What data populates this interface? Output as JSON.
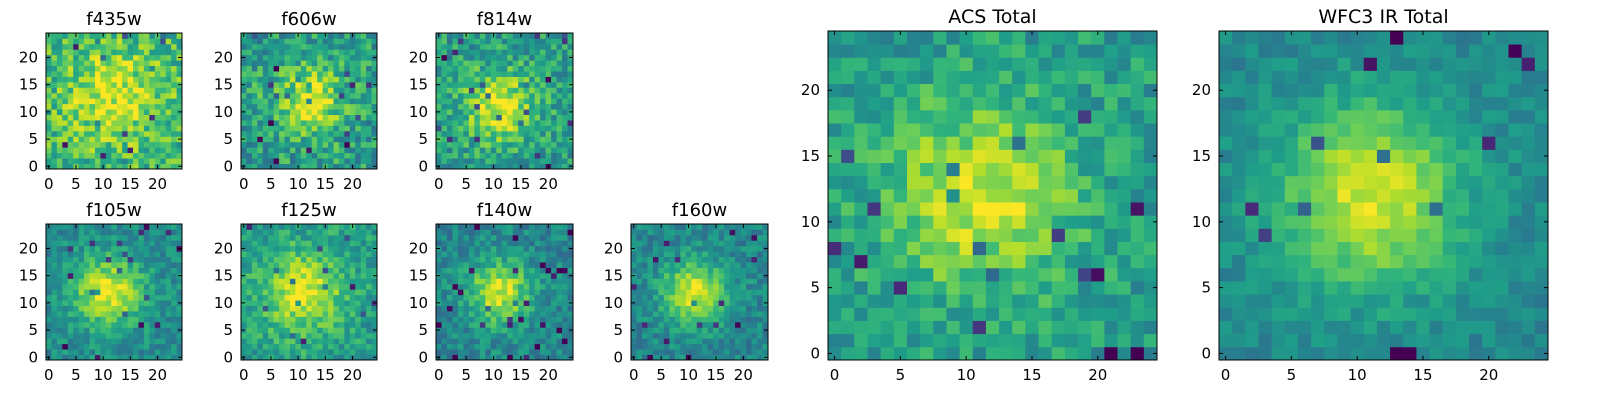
{
  "chart_data": [
    {
      "type": "heatmap",
      "title": "f435w",
      "grid_size": 25,
      "xlim": [
        -0.5,
        24.5
      ],
      "ylim": [
        -0.5,
        24.5
      ],
      "xticks": [
        0,
        5,
        10,
        15,
        20
      ],
      "yticks": [
        0,
        5,
        10,
        15,
        20
      ],
      "colormap": "viridis",
      "center": [
        12,
        13
      ],
      "sigma": 6,
      "peak": 0.28,
      "base": 0.66,
      "noise": 0.2,
      "seed": 11,
      "grid": false,
      "legend": false
    },
    {
      "type": "heatmap",
      "title": "f606w",
      "grid_size": 25,
      "xlim": [
        -0.5,
        24.5
      ],
      "ylim": [
        -0.5,
        24.5
      ],
      "xticks": [
        0,
        5,
        10,
        15,
        20
      ],
      "yticks": [
        0,
        5,
        10,
        15,
        20
      ],
      "colormap": "viridis",
      "center": [
        12,
        12
      ],
      "sigma": 4.5,
      "peak": 0.4,
      "base": 0.55,
      "noise": 0.2,
      "seed": 23,
      "grid": false,
      "legend": false
    },
    {
      "type": "heatmap",
      "title": "f814w",
      "grid_size": 25,
      "xlim": [
        -0.5,
        24.5
      ],
      "ylim": [
        -0.5,
        24.5
      ],
      "xticks": [
        0,
        5,
        10,
        15,
        20
      ],
      "yticks": [
        0,
        5,
        10,
        15,
        20
      ],
      "colormap": "viridis",
      "center": [
        11,
        11
      ],
      "sigma": 4.5,
      "peak": 0.42,
      "base": 0.55,
      "noise": 0.18,
      "seed": 37,
      "grid": false,
      "legend": false
    },
    {
      "type": "heatmap",
      "title": "f105w",
      "grid_size": 25,
      "xlim": [
        -0.5,
        24.5
      ],
      "ylim": [
        -0.5,
        24.5
      ],
      "xticks": [
        0,
        5,
        10,
        15,
        20
      ],
      "yticks": [
        0,
        5,
        10,
        15,
        20
      ],
      "colormap": "viridis",
      "center": [
        11,
        12
      ],
      "sigma": 4.5,
      "peak": 0.48,
      "base": 0.48,
      "noise": 0.12,
      "seed": 41,
      "grid": false,
      "legend": false
    },
    {
      "type": "heatmap",
      "title": "f125w",
      "grid_size": 25,
      "xlim": [
        -0.5,
        24.5
      ],
      "ylim": [
        -0.5,
        24.5
      ],
      "xticks": [
        0,
        5,
        10,
        15,
        20
      ],
      "yticks": [
        0,
        5,
        10,
        15,
        20
      ],
      "colormap": "viridis",
      "center": [
        11,
        12
      ],
      "sigma": 5,
      "peak": 0.4,
      "base": 0.56,
      "noise": 0.14,
      "seed": 53,
      "grid": false,
      "legend": false
    },
    {
      "type": "heatmap",
      "title": "f140w",
      "grid_size": 25,
      "xlim": [
        -0.5,
        24.5
      ],
      "ylim": [
        -0.5,
        24.5
      ],
      "xticks": [
        0,
        5,
        10,
        15,
        20
      ],
      "yticks": [
        0,
        5,
        10,
        15,
        20
      ],
      "colormap": "viridis",
      "center": [
        11,
        12
      ],
      "sigma": 4,
      "peak": 0.48,
      "base": 0.46,
      "noise": 0.13,
      "seed": 67,
      "grid": false,
      "legend": false
    },
    {
      "type": "heatmap",
      "title": "f160w",
      "grid_size": 25,
      "xlim": [
        -0.5,
        24.5
      ],
      "ylim": [
        -0.5,
        24.5
      ],
      "xticks": [
        0,
        5,
        10,
        15,
        20
      ],
      "yticks": [
        0,
        5,
        10,
        15,
        20
      ],
      "colormap": "viridis",
      "center": [
        11,
        12
      ],
      "sigma": 4,
      "peak": 0.5,
      "base": 0.46,
      "noise": 0.12,
      "seed": 79,
      "grid": false,
      "legend": false
    },
    {
      "type": "heatmap",
      "title": "ACS Total",
      "grid_size": 25,
      "xlim": [
        -0.5,
        24.5
      ],
      "ylim": [
        -0.5,
        24.5
      ],
      "xticks": [
        0,
        5,
        10,
        15,
        20
      ],
      "yticks": [
        0,
        5,
        10,
        15,
        20
      ],
      "colormap": "viridis",
      "center": [
        11,
        12
      ],
      "sigma": 5,
      "peak": 0.38,
      "base": 0.55,
      "noise": 0.14,
      "seed": 83,
      "grid": false,
      "legend": false
    },
    {
      "type": "heatmap",
      "title": "WFC3 IR Total",
      "grid_size": 25,
      "xlim": [
        -0.5,
        24.5
      ],
      "ylim": [
        -0.5,
        24.5
      ],
      "xticks": [
        0,
        5,
        10,
        15,
        20
      ],
      "yticks": [
        0,
        5,
        10,
        15,
        20
      ],
      "colormap": "viridis",
      "center": [
        11,
        12
      ],
      "sigma": 5,
      "peak": 0.48,
      "base": 0.46,
      "noise": 0.08,
      "seed": 97,
      "grid": false,
      "legend": false
    }
  ],
  "colors": {
    "background": "#ffffff",
    "axes": "#000000",
    "text": "#000000"
  }
}
